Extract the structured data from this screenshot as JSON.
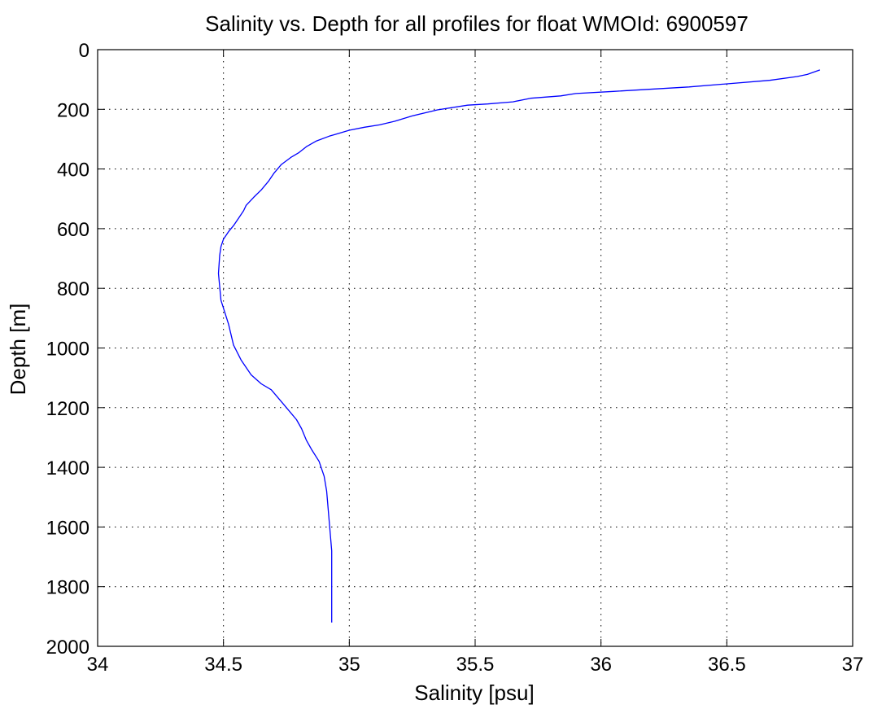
{
  "chart_data": {
    "type": "line",
    "title": "Salinity vs. Depth for all profiles for float WMOId: 6900597",
    "xlabel": "Salinity [psu]",
    "ylabel": "Depth [m]",
    "xlim": [
      34,
      37
    ],
    "ylim": [
      0,
      2000
    ],
    "y_reversed": true,
    "grid": true,
    "x_ticks": [
      34,
      34.5,
      35,
      35.5,
      36,
      36.5,
      37
    ],
    "x_tick_labels": [
      "34",
      "34.5",
      "35",
      "35.5",
      "36",
      "36.5",
      "37"
    ],
    "y_ticks": [
      0,
      200,
      400,
      600,
      800,
      1000,
      1200,
      1400,
      1600,
      1800,
      2000
    ],
    "y_tick_labels": [
      "0",
      "200",
      "400",
      "600",
      "800",
      "1000",
      "1200",
      "1400",
      "1600",
      "1800",
      "2000"
    ],
    "line_color": "#0000ff",
    "series": [
      {
        "x": [
          36.87,
          36.82,
          36.78,
          36.67,
          36.35,
          36.05,
          35.9,
          35.84,
          35.72,
          35.65,
          35.55,
          35.47,
          35.35,
          35.25,
          35.18,
          35.12,
          35.06,
          35.0,
          34.94,
          34.92,
          34.87,
          34.83,
          34.8,
          34.77,
          34.73,
          34.7,
          34.68,
          34.65,
          34.62,
          34.59,
          34.58,
          34.56,
          34.54,
          34.52,
          34.5,
          34.49,
          34.485,
          34.48,
          34.49,
          34.52,
          34.54,
          34.57,
          34.61,
          34.65,
          34.69,
          34.74,
          34.79,
          34.81,
          34.83,
          34.85,
          34.88,
          34.9,
          34.91,
          34.92,
          34.93,
          34.93,
          34.93,
          34.93
        ],
        "y": [
          68,
          83,
          90,
          103,
          125,
          140,
          147,
          155,
          163,
          175,
          182,
          186,
          202,
          222,
          240,
          252,
          260,
          270,
          285,
          290,
          306,
          325,
          345,
          360,
          385,
          415,
          440,
          470,
          495,
          522,
          540,
          565,
          590,
          610,
          635,
          660,
          690,
          750,
          840,
          920,
          990,
          1040,
          1090,
          1120,
          1140,
          1190,
          1240,
          1270,
          1310,
          1340,
          1380,
          1430,
          1480,
          1580,
          1680,
          1780,
          1880,
          1920
        ]
      }
    ]
  }
}
